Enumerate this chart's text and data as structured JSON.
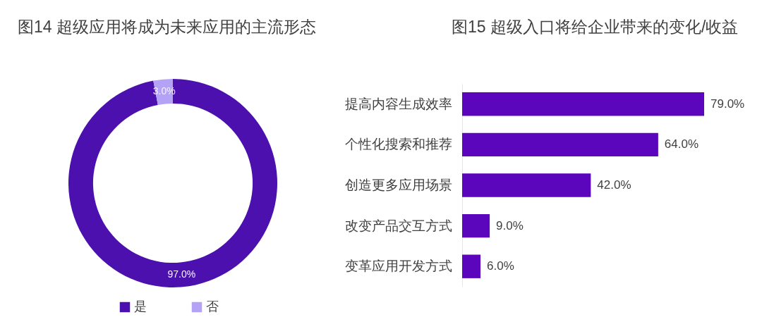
{
  "chart_data": [
    {
      "type": "donut",
      "title": "图14 超级应用将成为未来应用的主流形态",
      "categories": [
        "是",
        "否"
      ],
      "values": [
        97,
        3
      ],
      "colors": [
        "#4b10ae",
        "#b4a2f7"
      ],
      "value_labels": [
        "97.0%",
        "3.0%"
      ],
      "legend": "bottom"
    },
    {
      "type": "bar",
      "orientation": "horizontal",
      "title": "图15 超级入口将给企业带来的变化/收益",
      "categories": [
        "提高内容生成效率",
        "个性化搜索和推荐",
        "创造更多应用场景",
        "改变产品交互方式",
        "变革应用开发方式"
      ],
      "values": [
        79,
        64,
        42,
        9,
        6
      ],
      "color": "#5b06bd",
      "value_labels": [
        "79.0%",
        "64.0%",
        "42.0%",
        "9.0%",
        "6.0%"
      ],
      "tick_labels": "y"
    }
  ]
}
